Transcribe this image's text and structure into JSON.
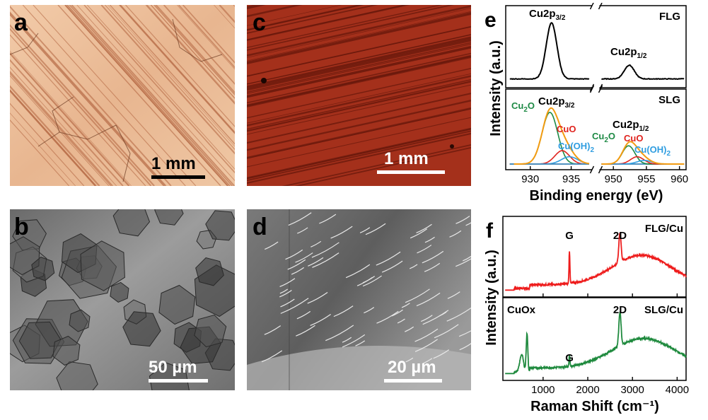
{
  "figure": {
    "panel_a": {
      "label": "a",
      "scale_bar": "1 mm"
    },
    "panel_b": {
      "label": "b",
      "scale_bar": "50 µm"
    },
    "panel_c": {
      "label": "c",
      "scale_bar": "1 mm"
    },
    "panel_d": {
      "label": "d",
      "scale_bar": "20 µm"
    },
    "panel_e": {
      "label": "e"
    },
    "panel_f": {
      "label": "f"
    }
  },
  "colors": {
    "copper_light": "#e6b893",
    "copper_dark": "#a8301a",
    "fit_green": "#1e8a45",
    "fit_red": "#e0231e",
    "fit_blue": "#2f9de0",
    "fit_orange": "#f39c12",
    "raman_red": "#ee1c1c",
    "raman_green": "#1f8a3e"
  },
  "chart_data": [
    {
      "type": "line",
      "panel": "e",
      "xlabel": "Binding energy (eV)",
      "ylabel": "Intensity (a.u.)",
      "xlim": [
        927,
        961
      ],
      "x_ticks": [
        "930",
        "935",
        "950",
        "955",
        "960"
      ],
      "axis_break": [
        937.5,
        948
      ],
      "subplots": [
        {
          "name": "FLG",
          "annotations": [
            {
              "base": "Cu2p",
              "sub": "3/2",
              "x": 932.6
            },
            {
              "base": "Cu2p",
              "sub": "1/2",
              "x": 952.4
            }
          ],
          "series": [
            {
              "name": "FLG",
              "color": "#000000",
              "peaks": [
                {
                  "center": 932.6,
                  "height": 0.9,
                  "width": 0.65
                },
                {
                  "center": 952.4,
                  "height": 0.22,
                  "width": 0.75
                }
              ],
              "baseline": 0.05
            }
          ]
        },
        {
          "name": "SLG",
          "annotations": [
            {
              "base": "Cu2p",
              "sub": "3/2",
              "x": 932.6
            },
            {
              "base": "Cu2p",
              "sub": "1/2",
              "x": 952.4
            }
          ],
          "component_labels": [
            {
              "text": "Cu",
              "sub": "2",
              "tail": "O",
              "color": "#1e8a45"
            },
            {
              "text": "CuO",
              "sub": "",
              "tail": "",
              "color": "#e0231e"
            },
            {
              "text": "Cu(OH)",
              "sub": "2",
              "tail": "",
              "color": "#2f9de0"
            },
            {
              "text": "Cu",
              "sub": "2",
              "tail": "O",
              "color": "#1e8a45"
            },
            {
              "text": "CuO",
              "sub": "",
              "tail": "",
              "color": "#e0231e"
            },
            {
              "text": "Cu(OH)",
              "sub": "2",
              "tail": "",
              "color": "#2f9de0"
            }
          ],
          "series": [
            {
              "name": "Cu2O 2p3/2",
              "color": "#1e8a45",
              "peaks": [
                {
                  "center": 932.4,
                  "height": 0.85,
                  "width": 0.95
                }
              ]
            },
            {
              "name": "CuO 2p3/2",
              "color": "#e0231e",
              "peaks": [
                {
                  "center": 933.9,
                  "height": 0.22,
                  "width": 0.9
                }
              ]
            },
            {
              "name": "Cu(OH)2 2p3/2",
              "color": "#2f9de0",
              "peaks": [
                {
                  "center": 934.8,
                  "height": 0.12,
                  "width": 1.0
                }
              ]
            },
            {
              "name": "Cu2O 2p1/2",
              "color": "#1e8a45",
              "peaks": [
                {
                  "center": 952.3,
                  "height": 0.3,
                  "width": 0.95
                }
              ]
            },
            {
              "name": "CuO 2p1/2",
              "color": "#e0231e",
              "peaks": [
                {
                  "center": 953.6,
                  "height": 0.12,
                  "width": 1.0
                }
              ]
            },
            {
              "name": "Cu(OH)2 2p1/2",
              "color": "#2f9de0",
              "peaks": [
                {
                  "center": 954.7,
                  "height": 0.06,
                  "width": 1.1
                }
              ]
            }
          ]
        }
      ]
    },
    {
      "type": "line",
      "panel": "f",
      "xlabel": "Raman Shift (cm⁻¹)",
      "ylabel": "Intensity (a.u.)",
      "xlim": [
        100,
        4200
      ],
      "x_ticks": [
        1000,
        2000,
        3000,
        4000
      ],
      "subplots": [
        {
          "name": "FLG/Cu",
          "color": "#ee1c1c",
          "annotations": [
            {
              "text": "G",
              "x": 1590
            },
            {
              "text": "2D",
              "x": 2720
            }
          ],
          "series": [
            {
              "name": "FLG/Cu",
              "peaks": [
                {
                  "center": 1590,
                  "height": 0.55,
                  "width": 10
                },
                {
                  "center": 2720,
                  "height": 0.5,
                  "width": 25
                }
              ],
              "background": {
                "start": 0.05,
                "hump_center": 3200,
                "hump_height": 0.5,
                "hump_width": 650,
                "end": 0.12
              }
            }
          ]
        },
        {
          "name": "SLG/Cu",
          "color": "#1f8a3e",
          "annotations": [
            {
              "text": "CuOx",
              "x": 400
            },
            {
              "text": "G",
              "x": 1590
            },
            {
              "text": "2D",
              "x": 2720
            }
          ],
          "series": [
            {
              "name": "SLG/Cu",
              "peaks": [
                {
                  "center": 640,
                  "height": 0.62,
                  "width": 18
                },
                {
                  "center": 520,
                  "height": 0.28,
                  "width": 40
                },
                {
                  "center": 1590,
                  "height": 0.18,
                  "width": 10
                },
                {
                  "center": 2720,
                  "height": 0.55,
                  "width": 25
                }
              ],
              "background": {
                "start": 0.05,
                "hump_center": 3250,
                "hump_height": 0.48,
                "hump_width": 700,
                "end": 0.12
              }
            }
          ]
        }
      ]
    }
  ]
}
